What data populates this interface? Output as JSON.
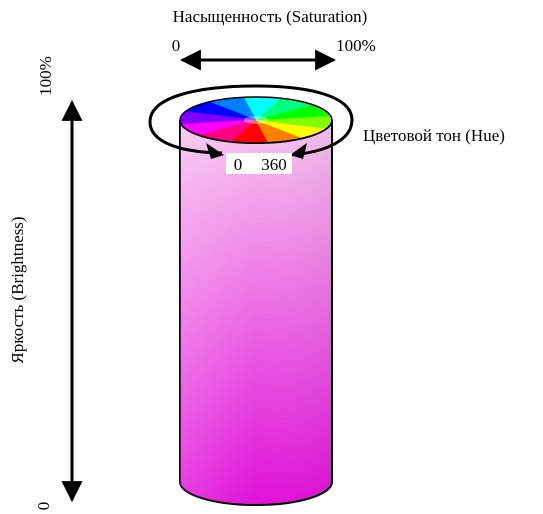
{
  "saturation": {
    "title": "Насыщенность (Saturation)",
    "min_label": "0",
    "max_label": "100%"
  },
  "hue": {
    "title": "Цветовой тон (Hue)",
    "start_label": "0",
    "end_label": "360",
    "wheel_colors": [
      "#ff0000",
      "#ff8000",
      "#ffff00",
      "#80ff00",
      "#00ff00",
      "#00ff80",
      "#00ffff",
      "#0080ff",
      "#0000ff",
      "#8000ff",
      "#ff00ff",
      "#ff0080"
    ]
  },
  "brightness": {
    "title": "Яркость (Brightness)",
    "min_label": "0",
    "max_label": "100%"
  },
  "cylinder": {
    "color_top": "#f7c6f0",
    "color_bottom": "#e010d8",
    "outline_color": "#000000"
  }
}
